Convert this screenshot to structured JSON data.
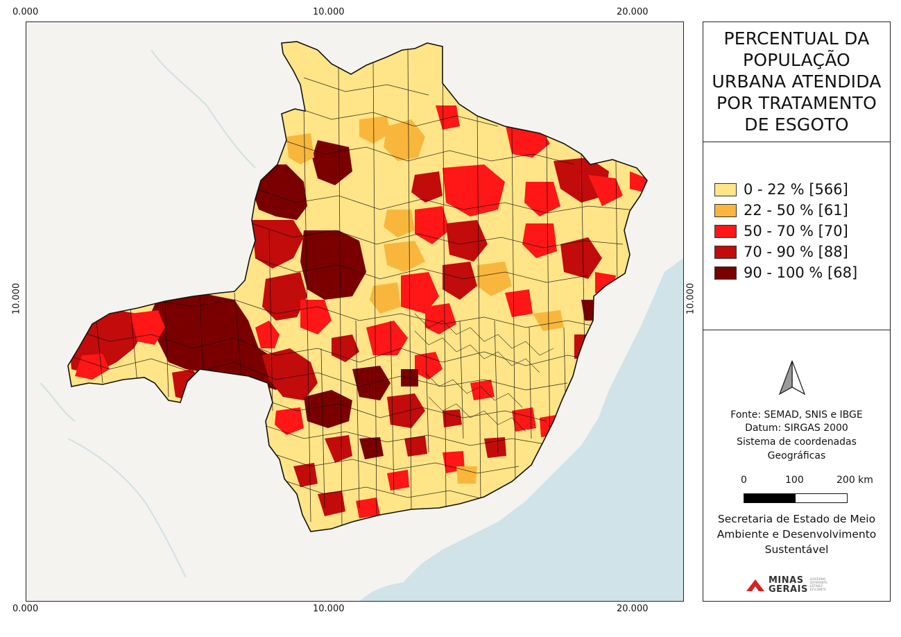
{
  "frame_ticks": {
    "top": [
      "0.000",
      "10.000",
      "20.000"
    ],
    "bottom": [
      "0.000",
      "10.000",
      "20.000"
    ],
    "left": "10.000",
    "right": "10.000"
  },
  "title": "PERCENTUAL DA POPULAÇÃO URBANA ATENDIDA POR TRATAMENTO DE ESGOTO",
  "legend": [
    {
      "label": "0 - 22 % [566]",
      "color": "#ffe587"
    },
    {
      "label": "22 - 50 % [61]",
      "color": "#f8b73c"
    },
    {
      "label": "50 - 70 % [70]",
      "color": "#ff1616"
    },
    {
      "label": "70 - 90 % [88]",
      "color": "#c20b0b"
    },
    {
      "label": "90 - 100 % [68]",
      "color": "#7a0000"
    }
  ],
  "north_arrow": "north-arrow-icon",
  "source": [
    "Fonte: SEMAD, SNIS e IBGE",
    "Datum: SIRGAS 2000",
    "Sistema de coordenadas",
    "Geográficas"
  ],
  "scale_bar": {
    "labels": [
      "0",
      "100",
      "200 km"
    ]
  },
  "organization": [
    "Secretaria de Estado de Meio",
    "Ambiente e Desenvolvimento",
    "Sustentável"
  ],
  "logo": {
    "line1": "MINAS",
    "line2": "GERAIS",
    "small": [
      "GOVERNO",
      "DIFERENTE",
      "ESTADO",
      "EFICIENTE"
    ]
  },
  "colors": {
    "water": "#cfe3e8",
    "land": "#f4f3ef",
    "border": "#111111"
  }
}
